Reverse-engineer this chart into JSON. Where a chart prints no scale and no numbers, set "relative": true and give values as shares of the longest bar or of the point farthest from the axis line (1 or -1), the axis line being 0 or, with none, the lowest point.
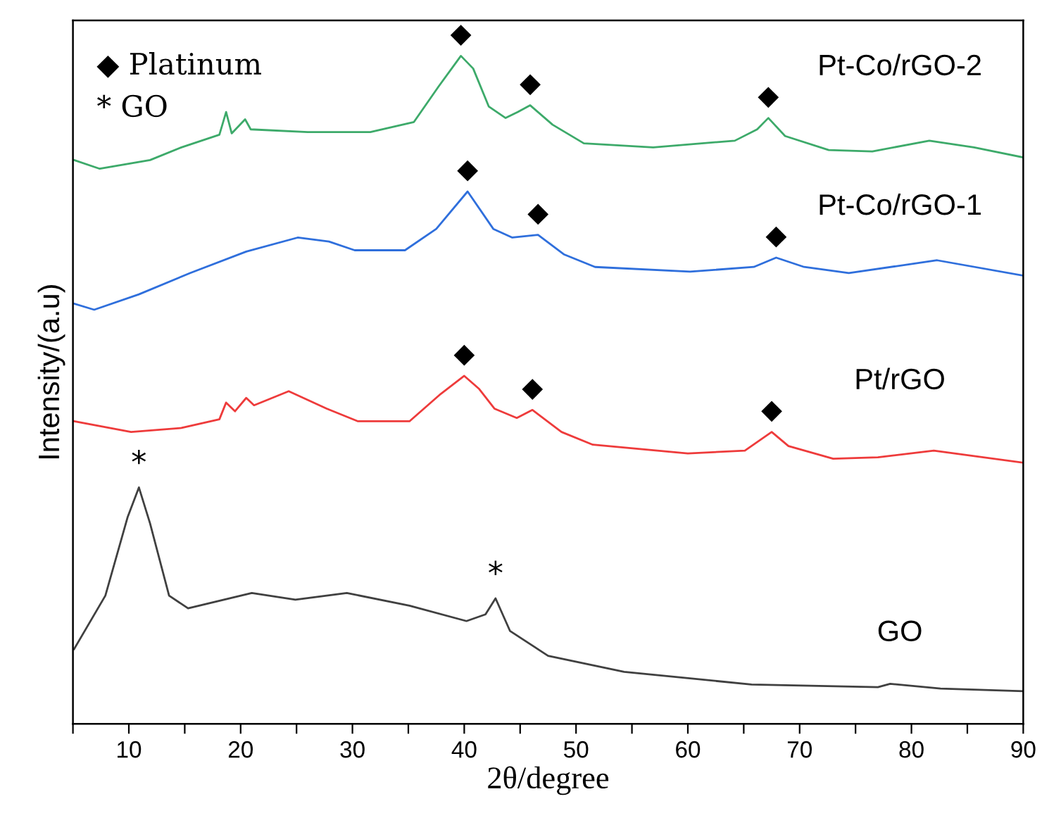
{
  "chart_data": {
    "type": "line",
    "relative": true,
    "xlabel": "2θ/degree",
    "ylabel": "Intensity/(a.u)",
    "xlim": [
      5,
      90
    ],
    "xticks": [
      {
        "value": 5,
        "label": null
      },
      10,
      {
        "value": 15,
        "label": null
      },
      20,
      {
        "value": 25,
        "label": null
      },
      30,
      {
        "value": 35,
        "label": null
      },
      40,
      {
        "value": 45,
        "label": null
      },
      50,
      {
        "value": 55,
        "label": null
      },
      60,
      {
        "value": 65,
        "label": null
      },
      70,
      {
        "value": 75,
        "label": null
      },
      80,
      {
        "value": 85,
        "label": null
      },
      90
    ],
    "tick_labels": "x",
    "grid": false,
    "line_style": "solid",
    "marker": "none",
    "series": [
      {
        "name": "Pt-Co/rGO-2",
        "color": "#3daa6a",
        "x": [
          5.1,
          7.4,
          11.9,
          14.7,
          18.1,
          18.7,
          19.2,
          20.4,
          20.9,
          26.0,
          31.6,
          35.5,
          37.7,
          39.7,
          40.8,
          42.2,
          43.7,
          44.8,
          45.9,
          47.9,
          50.7,
          56.9,
          64.2,
          66.2,
          67.2,
          68.7,
          72.6,
          76.5,
          81.6,
          85.6,
          90
        ],
        "values": [
          0.844,
          0.831,
          0.844,
          0.863,
          0.882,
          0.916,
          0.884,
          0.905,
          0.89,
          0.886,
          0.886,
          0.901,
          0.954,
          1.0,
          0.981,
          0.924,
          0.907,
          0.916,
          0.926,
          0.897,
          0.869,
          0.863,
          0.873,
          0.89,
          0.907,
          0.88,
          0.859,
          0.857,
          0.873,
          0.863,
          0.848
        ]
      },
      {
        "name": "Pt-Co/rGO-1",
        "color": "#2f6fdc",
        "x": [
          5.1,
          6.9,
          10.9,
          15.5,
          20.5,
          25.1,
          27.9,
          30.2,
          34.7,
          37.5,
          40.3,
          42.6,
          44.3,
          46.6,
          48.9,
          51.7,
          60.2,
          65.9,
          67.9,
          70.4,
          74.4,
          82.3,
          90
        ],
        "values": [
          0.629,
          0.62,
          0.643,
          0.675,
          0.707,
          0.728,
          0.722,
          0.709,
          0.709,
          0.741,
          0.797,
          0.741,
          0.728,
          0.732,
          0.703,
          0.684,
          0.677,
          0.684,
          0.698,
          0.684,
          0.675,
          0.694,
          0.671
        ]
      },
      {
        "name": "Pt/rGO",
        "color": "#ee3b3b",
        "x": [
          5.1,
          10.2,
          14.7,
          18.1,
          18.7,
          19.5,
          20.5,
          21.2,
          24.3,
          27.7,
          30.5,
          35.1,
          37.9,
          40.0,
          41.3,
          42.7,
          44.7,
          46.1,
          48.7,
          51.5,
          60.0,
          65.1,
          67.5,
          69.0,
          73.0,
          77.0,
          82.0,
          90
        ],
        "values": [
          0.453,
          0.437,
          0.443,
          0.456,
          0.481,
          0.468,
          0.488,
          0.477,
          0.498,
          0.472,
          0.453,
          0.453,
          0.494,
          0.521,
          0.502,
          0.472,
          0.458,
          0.47,
          0.437,
          0.418,
          0.405,
          0.409,
          0.437,
          0.416,
          0.397,
          0.399,
          0.409,
          0.391
        ]
      },
      {
        "name": "GO",
        "color": "#404040",
        "x": [
          5.1,
          7.9,
          9.9,
          10.9,
          11.9,
          13.6,
          15.3,
          21.0,
          24.9,
          29.5,
          35.1,
          40.2,
          41.9,
          42.8,
          44.1,
          47.5,
          54.3,
          65.7,
          77.0,
          78.1,
          82.6,
          90
        ],
        "values": [
          0.112,
          0.192,
          0.31,
          0.354,
          0.3,
          0.192,
          0.173,
          0.196,
          0.186,
          0.196,
          0.177,
          0.154,
          0.164,
          0.188,
          0.139,
          0.102,
          0.078,
          0.059,
          0.055,
          0.06,
          0.053,
          0.049
        ]
      }
    ],
    "annotations": [
      "◆ Platinum",
      "* GO",
      {
        "text": "◆",
        "x": 39.7,
        "y": 1.0
      },
      {
        "text": "◆",
        "x": 45.9,
        "y": 0.926
      },
      {
        "text": "◆",
        "x": 67.2,
        "y": 0.907
      },
      {
        "text": "◆",
        "x": 40.3,
        "y": 0.797
      },
      {
        "text": "◆",
        "x": 46.6,
        "y": 0.732
      },
      {
        "text": "◆",
        "x": 67.9,
        "y": 0.698
      },
      {
        "text": "◆",
        "x": 40.0,
        "y": 0.521
      },
      {
        "text": "◆",
        "x": 46.1,
        "y": 0.47
      },
      {
        "text": "◆",
        "x": 67.5,
        "y": 0.437
      },
      {
        "text": "*",
        "x": 10.9,
        "y": 0.354
      },
      {
        "text": "*",
        "x": 42.8,
        "y": 0.188
      }
    ]
  }
}
